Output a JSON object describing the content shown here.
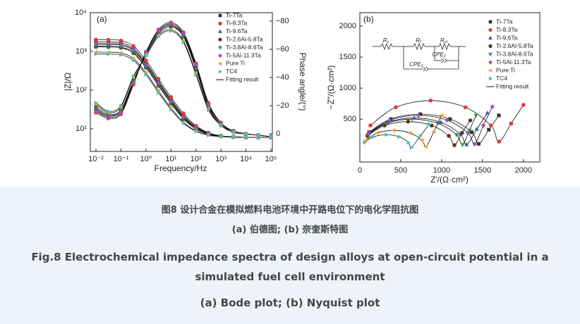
{
  "chart_data": [
    {
      "type": "line",
      "panel_label": "(a)",
      "x_label": "Frequency/Hz",
      "y_label": "|Z|/Ω",
      "y2_label": "Phase angle/(°)",
      "xscale": "log",
      "yscale": "log",
      "x": [
        0.01,
        0.0316,
        0.1,
        0.316,
        1,
        3.16,
        10,
        31.6,
        100,
        316,
        1000,
        3162,
        10000,
        31623,
        100000
      ],
      "xlim": [
        0.01,
        100000
      ],
      "xticks": [
        {
          "value": 0.01,
          "label": "10⁻²"
        },
        {
          "value": 0.1,
          "label": "10⁻¹"
        },
        {
          "value": 1,
          "label": "10⁰"
        },
        {
          "value": 10,
          "label": "10¹"
        },
        {
          "value": 100,
          "label": "10²"
        },
        {
          "value": 1000,
          "label": "10³"
        },
        {
          "value": 10000,
          "label": "10⁴"
        },
        {
          "value": 100000,
          "label": "10⁵"
        }
      ],
      "ylim": [
        2.6,
        10000
      ],
      "yticks": [
        {
          "value": 10,
          "label": "10¹"
        },
        {
          "value": 100,
          "label": "10²"
        },
        {
          "value": 1000,
          "label": "10³"
        },
        {
          "value": 10000,
          "label": "10⁴"
        }
      ],
      "y2lim": [
        12.5,
        -86
      ],
      "y2ticks": [
        0,
        {
          "value": -20,
          "label": "−20"
        },
        {
          "value": -40,
          "label": "−40"
        },
        {
          "value": -60,
          "label": "−60"
        },
        {
          "value": -80,
          "label": "−80"
        }
      ],
      "fit_label": "Fitting result",
      "fit_color": "#111111",
      "series": [
        {
          "name": "Ti-7Ta",
          "color": "#333333",
          "marker": "square",
          "values": [
            1756,
            1746,
            1667,
            1210,
            510,
            171,
            58.5,
            22.6,
            11.3,
            7.7,
            6.5,
            6.2,
            6,
            6,
            6
          ],
          "phase": [
            -17,
            -12,
            -15,
            -36,
            -58,
            -73,
            -78,
            -71,
            -48,
            -21,
            -7,
            -2,
            0,
            1,
            2
          ]
        },
        {
          "name": "Ti-8.3Ta",
          "color": "#e53935",
          "marker": "circle",
          "values": [
            2006,
            1995,
            1904,
            1382,
            582,
            195,
            66,
            25,
            12,
            7.9,
            6.6,
            6.2,
            6,
            6,
            6
          ],
          "phase": [
            -15,
            -11,
            -14,
            -35,
            -58,
            -74,
            -79,
            -72,
            -50,
            -22,
            -8,
            -2,
            0,
            1,
            2
          ]
        },
        {
          "name": "Ti-9.6Ta",
          "color": "#3f51b5",
          "marker": "triangle",
          "values": [
            1506,
            1498,
            1430,
            1038,
            438,
            148,
            51,
            20,
            10.5,
            7.4,
            6.5,
            6.2,
            6,
            6,
            6
          ],
          "phase": [
            -18,
            -13,
            -16,
            -37,
            -57,
            -72,
            -77,
            -70,
            -47,
            -20,
            -7,
            -2,
            0,
            1,
            2
          ]
        },
        {
          "name": "Ti-2.6Al-5.8Ta",
          "color": "#5d3a1a",
          "marker": "circle",
          "values": [
            1306,
            1299,
            1240,
            900,
            380,
            129,
            45,
            18,
            9.9,
            7.2,
            6.4,
            6.1,
            6,
            6,
            6
          ],
          "phase": [
            -19,
            -14,
            -17,
            -38,
            -56,
            -71,
            -76,
            -69,
            -46,
            -19,
            -6,
            -2,
            0,
            1,
            2
          ]
        },
        {
          "name": "Ti-3.8Al-8.6Ta",
          "color": "#2e8b57",
          "marker": "triangle-down",
          "values": [
            1356,
            1349,
            1287,
            935,
            395,
            134,
            46.5,
            18.8,
            10,
            7.3,
            6.4,
            6.1,
            6,
            6,
            6
          ],
          "phase": [
            -18,
            -13,
            -17,
            -37,
            -57,
            -72,
            -77,
            -69,
            -46,
            -20,
            -7,
            -2,
            0,
            1,
            2
          ]
        },
        {
          "name": "Ti-5Al-11.3Ta",
          "color": "#9c4fc4",
          "marker": "diamond",
          "values": [
            1606,
            1597,
            1524,
            1107,
            467,
            157,
            54,
            21,
            10.8,
            7.5,
            6.5,
            6.2,
            6,
            6,
            6
          ],
          "phase": [
            -16,
            -12,
            -15,
            -36,
            -58,
            -73,
            -78,
            -71,
            -49,
            -21,
            -7,
            -2,
            0,
            1,
            2
          ]
        },
        {
          "name": "Pure Ti",
          "color": "#f0a030",
          "marker": "triangle-left",
          "values": [
            956,
            951,
            908,
            660,
            280,
            96,
            34.5,
            15,
            8.9,
            6.9,
            6.3,
            6.1,
            6,
            6,
            6
          ],
          "phase": [
            -21,
            -15,
            -19,
            -40,
            -56,
            -70,
            -74,
            -66,
            -43,
            -18,
            -6,
            -1,
            0,
            1,
            2
          ]
        },
        {
          "name": "TC4",
          "color": "#40c0c0",
          "marker": "triangle-right",
          "values": [
            856,
            851,
            813,
            591,
            251,
            86,
            31.5,
            14,
            8.6,
            6.8,
            6.3,
            6.1,
            6,
            6,
            6
          ],
          "phase": [
            -22,
            -16,
            -20,
            -41,
            -55,
            -69,
            -73,
            -65,
            -42,
            -17,
            -6,
            -1,
            0,
            1,
            2
          ]
        }
      ]
    },
    {
      "type": "scatter",
      "panel_label": "(b)",
      "x_label": "Z′/(Ω·cm²)",
      "y_label": "−Z″/(Ω·cm²)",
      "xlim": [
        0,
        2200
      ],
      "xticks": [
        0,
        500,
        1000,
        1500,
        2000
      ],
      "ylim": [
        -190,
        2215
      ],
      "yticks": [
        500,
        1000,
        1500,
        2000
      ],
      "fit_label": "Fitting result",
      "fit_color": "#111111",
      "circuit": [
        {
          "main": "R",
          "sub": "s"
        },
        {
          "main": "R",
          "sub": "f"
        },
        {
          "main": "R",
          "sub": "ct"
        },
        {
          "main": "CPE",
          "sub": "2"
        },
        {
          "main": "CPE",
          "sub": "1"
        }
      ],
      "series": [
        {
          "name": "Ti-7Ta",
          "color": "#333333",
          "marker": "square",
          "x": [
            112,
            378,
            740,
            1103,
            1368,
            1453,
            1577,
            1700
          ],
          "values": [
            290,
            502,
            580,
            502,
            290,
            102,
            330,
            560
          ]
        },
        {
          "name": "Ti-8.3Ta",
          "color": "#e53935",
          "marker": "circle",
          "x": [
            129,
            440,
            865,
            1290,
            1601,
            1701,
            1850,
            2000
          ],
          "values": [
            400,
            692,
            799,
            692,
            400,
            139,
            430,
            730
          ]
        },
        {
          "name": "Ti-9.6Ta",
          "color": "#3f51b5",
          "marker": "triangle",
          "x": [
            102,
            340,
            665,
            990,
            1228,
            1305,
            1430,
            1560
          ],
          "values": [
            260,
            450,
            520,
            450,
            260,
            91,
            340,
            600
          ]
        },
        {
          "name": "Ti-2.6Al-5.8Ta",
          "color": "#5d3a1a",
          "marker": "circle",
          "x": [
            92,
            303,
            590,
            878,
            1088,
            1156,
            1250,
            1350
          ],
          "values": [
            230,
            398,
            460,
            398,
            230,
            81,
            280,
            480
          ]
        },
        {
          "name": "Ti-3.8Al-8.6Ta",
          "color": "#2e8b57",
          "marker": "triangle-down",
          "x": [
            99,
            328,
            640,
            953,
            1181,
            1255,
            1340,
            1420
          ],
          "values": [
            250,
            433,
            500,
            433,
            250,
            88,
            320,
            560
          ]
        },
        {
          "name": "Ti-5Al-11.3Ta",
          "color": "#9c4fc4",
          "marker": "diamond",
          "x": [
            109,
            365,
            715,
            1065,
            1321,
            1404,
            1510,
            1620
          ],
          "values": [
            280,
            484,
            560,
            484,
            280,
            98,
            400,
            700
          ]
        },
        {
          "name": "Pure Ti",
          "color": "#f0a030",
          "marker": "triangle-left",
          "x": [
            69,
            215,
            415,
            615,
            761,
            809,
            905,
            1000
          ],
          "values": [
            160,
            277,
            320,
            277,
            160,
            56,
            300,
            560
          ]
        },
        {
          "name": "TC4",
          "color": "#40c0c0",
          "marker": "triangle-right",
          "x": [
            57,
            170,
            325,
            480,
            593,
            630,
            740,
            850
          ],
          "values": [
            124,
            215,
            248,
            215,
            124,
            43,
            230,
            420
          ]
        }
      ]
    }
  ],
  "caption": {
    "cn_title": "图8 设计合金在模拟燃料电池环境中开路电位下的电化学阻抗图",
    "cn_sub": "(a) 伯德图;  (b) 奈奎斯特图",
    "en_title": "Fig.8 Electrochemical impedance spectra of design alloys at open-circuit potential in a simulated fuel cell environment",
    "en_sub": "(a) Bode plot;  (b) Nyquist plot"
  }
}
